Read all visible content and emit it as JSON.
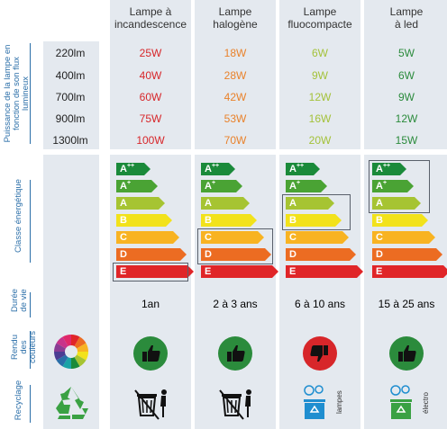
{
  "columns": [
    {
      "title": "Lampe à\nincandescence"
    },
    {
      "title": "Lampe\nhalogène"
    },
    {
      "title": "Lampe\nfluocompacte"
    },
    {
      "title": "Lampe\nà led"
    }
  ],
  "side_labels": {
    "power": "Puissance de la lampe en\nfonction de son flux lumineux",
    "energy": "Classe énergétique",
    "life": "Durée\nde vie",
    "color": "Rendu\ndes couleurs",
    "recycle": "Recyclage"
  },
  "flux_rows": [
    "220lm",
    "400lm",
    "700lm",
    "900lm",
    "1300lm"
  ],
  "power_values": [
    [
      "25W",
      "40W",
      "60W",
      "75W",
      "100W"
    ],
    [
      "18W",
      "28W",
      "42W",
      "53W",
      "70W"
    ],
    [
      "6W",
      "9W",
      "12W",
      "16W",
      "20W"
    ],
    [
      "5W",
      "6W",
      "9W",
      "12W",
      "15W"
    ]
  ],
  "column_colors": [
    "#d7262a",
    "#e9822b",
    "#a4c23a",
    "#2b8b3c"
  ],
  "energy_classes": [
    "A++",
    "A+",
    "A",
    "B",
    "C",
    "D",
    "E"
  ],
  "energy_colors": [
    "#1a8a3a",
    "#4aa334",
    "#a6c432",
    "#f2e21b",
    "#f8b322",
    "#ec6c22",
    "#e02528"
  ],
  "energy_highlight": [
    [
      "E"
    ],
    [
      "C",
      "D"
    ],
    [
      "A",
      "B"
    ],
    [
      "A++",
      "A+",
      "A"
    ]
  ],
  "lifespans": [
    "1an",
    "2 à 3 ans",
    "6 à 10 ans",
    "15 à 25 ans"
  ],
  "color_rendering": [
    {
      "icon": "thumbs-up-icon",
      "color": "#2b8b3c"
    },
    {
      "icon": "thumbs-up-icon",
      "color": "#2b8b3c"
    },
    {
      "icon": "thumbs-down-icon",
      "color": "#d7262a"
    },
    {
      "icon": "thumbs-up-icon",
      "color": "#2b8b3c"
    }
  ],
  "recycling": [
    {
      "icon": "trash-bin-crossed-icon"
    },
    {
      "icon": "trash-bin-crossed-icon"
    },
    {
      "icon": "recycle-bin-blue-icon",
      "note": "lampes"
    },
    {
      "icon": "recycle-bin-green-icon",
      "note": "électro"
    }
  ]
}
